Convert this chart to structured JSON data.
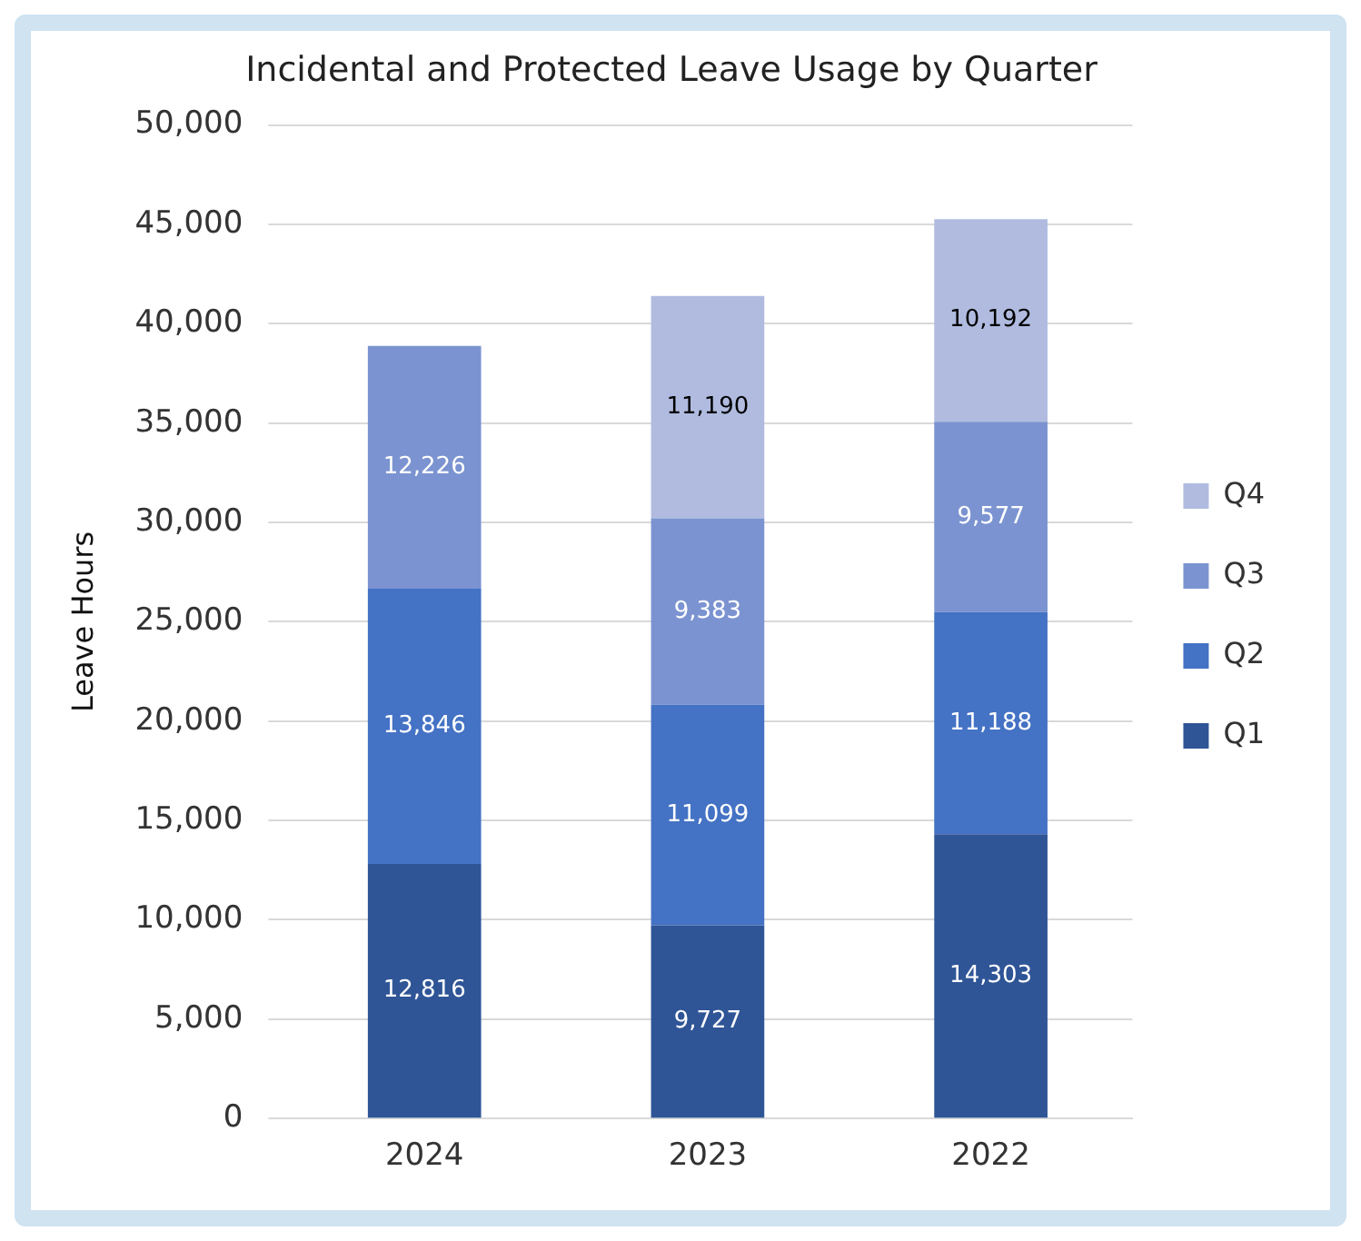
{
  "chart_data": {
    "type": "bar",
    "title": "Incidental and Protected Leave Usage by Quarter",
    "ylabel": "Leave Hours",
    "categories": [
      "2024",
      "2023",
      "2022"
    ],
    "stacked": true,
    "series": [
      {
        "name": "Q1",
        "color": "#2f5597",
        "values": [
          12816,
          9727,
          14303
        ],
        "value_labels": [
          "12,816",
          "9,727",
          "14,303"
        ]
      },
      {
        "name": "Q2",
        "color": "#4472c4",
        "values": [
          13846,
          11099,
          11188
        ],
        "value_labels": [
          "13,846",
          "11,099",
          "11,188"
        ]
      },
      {
        "name": "Q3",
        "color": "#7b93d0",
        "values": [
          12226,
          9383,
          9577
        ],
        "value_labels": [
          "12,226",
          "9,383",
          "9,577"
        ]
      },
      {
        "name": "Q4",
        "color": "#b0bbdf",
        "values": [
          null,
          11190,
          10192
        ],
        "value_labels": [
          null,
          "11,190",
          "10,192"
        ]
      }
    ],
    "ylim": [
      0,
      50000
    ],
    "yticks": [
      0,
      {
        "value": 5000,
        "label": "5,000"
      },
      {
        "value": 10000,
        "label": "10,000"
      },
      {
        "value": 15000,
        "label": "15,000"
      },
      {
        "value": 20000,
        "label": "20,000"
      },
      {
        "value": 25000,
        "label": "25,000"
      },
      {
        "value": 30000,
        "label": "30,000"
      },
      {
        "value": 35000,
        "label": "35,000"
      },
      {
        "value": 40000,
        "label": "40,000"
      },
      {
        "value": 45000,
        "label": "45,000"
      },
      {
        "value": 50000,
        "label": "50,000"
      }
    ],
    "grid": "y",
    "legend": "right"
  }
}
